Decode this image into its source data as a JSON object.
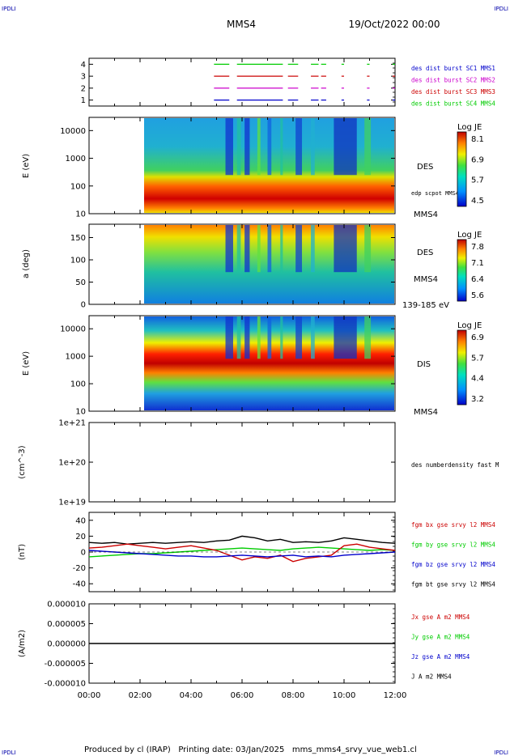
{
  "header": {
    "corner_left_top": "IPDLI",
    "corner_right_top": "IPDLI",
    "corner_left_bottom": "IPDLI",
    "corner_right_bottom": "IPDLI",
    "spacecraft": "MMS4",
    "date": "19/Oct/2022 00:00"
  },
  "footer": {
    "text": "Produced by cl (IRAP)   Printing date: 03/Jan/2025   mms_mms4_srvy_vue_web1.cl"
  },
  "time_axis": {
    "ticks": [
      "00:00",
      "02:00",
      "04:00",
      "06:00",
      "08:00",
      "10:00",
      "12:00"
    ],
    "range_hours": [
      0,
      12
    ]
  },
  "colors": {
    "blue": "#0000cc",
    "magenta": "#cc00cc",
    "red": "#cc0000",
    "green": "#00cc00",
    "black": "#000000"
  },
  "chart_data": [
    {
      "type": "line",
      "panel": "burst",
      "yticks": [
        "1",
        "2",
        "3",
        "4"
      ],
      "ylim": [
        0.5,
        4.5
      ],
      "legend": [
        {
          "label": "des dist burst SC1 MMS1",
          "color": "#0000cc"
        },
        {
          "label": "des dist burst SC2 MMS2",
          "color": "#cc00cc"
        },
        {
          "label": "des dist burst SC3 MMS3",
          "color": "#cc0000"
        },
        {
          "label": "des dist burst SC4 MMS4",
          "color": "#00cc00"
        }
      ],
      "series": [
        {
          "level": 1,
          "color": "#0000cc",
          "intervals": [
            [
              4.9,
              5.5
            ],
            [
              5.8,
              7.6
            ],
            [
              7.8,
              8.2
            ],
            [
              8.7,
              9.0
            ],
            [
              9.1,
              9.3
            ],
            [
              9.9,
              10.0
            ],
            [
              10.9,
              11.0
            ],
            [
              11.9,
              12.0
            ]
          ]
        },
        {
          "level": 2,
          "color": "#cc00cc",
          "intervals": [
            [
              4.9,
              5.5
            ],
            [
              5.8,
              7.6
            ],
            [
              7.8,
              8.2
            ],
            [
              8.7,
              9.0
            ],
            [
              9.1,
              9.3
            ],
            [
              9.9,
              10.0
            ],
            [
              10.9,
              11.0
            ],
            [
              11.9,
              12.0
            ]
          ]
        },
        {
          "level": 3,
          "color": "#cc0000",
          "intervals": [
            [
              4.9,
              5.5
            ],
            [
              5.8,
              7.6
            ],
            [
              7.8,
              8.2
            ],
            [
              8.7,
              9.0
            ],
            [
              9.1,
              9.3
            ],
            [
              9.9,
              10.0
            ],
            [
              10.9,
              11.0
            ],
            [
              11.9,
              12.0
            ]
          ]
        },
        {
          "level": 4,
          "color": "#00cc00",
          "intervals": [
            [
              4.9,
              5.5
            ],
            [
              5.8,
              7.6
            ],
            [
              7.8,
              8.2
            ],
            [
              8.7,
              9.0
            ],
            [
              9.1,
              9.3
            ],
            [
              9.9,
              10.0
            ],
            [
              10.9,
              11.0
            ],
            [
              11.9,
              12.0
            ]
          ]
        }
      ]
    },
    {
      "type": "heatmap",
      "panel": "des_energy",
      "ylabel": "E (eV)",
      "yscale": "log",
      "yticks": [
        "10",
        "100",
        "1000",
        "10000"
      ],
      "ylim": [
        10,
        30000
      ],
      "right_labels": [
        "DES",
        "edp scpot MMS4",
        "MMS4"
      ],
      "colorbar": {
        "title": "Log JE",
        "ticks": [
          "8.1",
          "6.9",
          "5.7",
          "4.5"
        ],
        "range": [
          4.5,
          8.1
        ]
      },
      "data_start_hours": 2.1
    },
    {
      "type": "heatmap",
      "panel": "des_pitch",
      "ylabel": "a (deg)",
      "yticks": [
        "0",
        "50",
        "100",
        "150"
      ],
      "ylim": [
        0,
        180
      ],
      "right_labels": [
        "DES",
        "MMS4",
        "139-185 eV"
      ],
      "colorbar": {
        "title": "Log JE",
        "ticks": [
          "7.8",
          "7.1",
          "6.4",
          "5.6"
        ],
        "range": [
          5.6,
          7.8
        ]
      },
      "data_start_hours": 2.1
    },
    {
      "type": "heatmap",
      "panel": "dis_energy",
      "ylabel": "E (eV)",
      "yscale": "log",
      "yticks": [
        "10",
        "100",
        "1000",
        "10000"
      ],
      "ylim": [
        10,
        30000
      ],
      "right_labels": [
        "DIS",
        "MMS4"
      ],
      "colorbar": {
        "title": "Log JE",
        "ticks": [
          "6.9",
          "5.7",
          "4.4",
          "3.2"
        ],
        "range": [
          3.2,
          6.9
        ]
      },
      "data_start_hours": 2.1
    },
    {
      "type": "line",
      "panel": "density",
      "ylabel": "(cm^-3)",
      "yscale": "log",
      "yticks": [
        "1e+19",
        "1e+20",
        "1e+21"
      ],
      "ylim": [
        1e+19,
        1e+21
      ],
      "legend": [
        {
          "label": "des numberdensity fast M",
          "color": "#000000"
        }
      ],
      "series": []
    },
    {
      "type": "line",
      "panel": "fgm",
      "ylabel": "(nT)",
      "yticks": [
        "-40",
        "-20",
        "0",
        "20",
        "40"
      ],
      "ylim": [
        -50,
        50
      ],
      "legend": [
        {
          "label": "fgm bx gse srvy l2 MMS4",
          "color": "#cc0000"
        },
        {
          "label": "fgm by gse srvy l2 MMS4",
          "color": "#00cc00"
        },
        {
          "label": "fgm bz gse srvy l2 MMS4",
          "color": "#0000cc"
        },
        {
          "label": "fgm bt gse srvy l2 MMS4",
          "color": "#000000"
        }
      ],
      "series": [
        {
          "color": "#000000",
          "x": [
            0,
            0.5,
            1,
            1.5,
            2,
            2.5,
            3,
            3.5,
            4,
            4.5,
            5,
            5.5,
            6,
            6.5,
            7,
            7.5,
            8,
            8.5,
            9,
            9.5,
            10,
            10.5,
            11,
            11.5,
            12
          ],
          "y": [
            12,
            11,
            12,
            10,
            11,
            12,
            11,
            12,
            13,
            12,
            14,
            15,
            20,
            18,
            14,
            16,
            12,
            13,
            12,
            14,
            18,
            16,
            14,
            12,
            11
          ]
        },
        {
          "color": "#00cc00",
          "x": [
            0,
            0.5,
            1,
            1.5,
            2,
            2.5,
            3,
            3.5,
            4,
            4.5,
            5,
            5.5,
            6,
            6.5,
            7,
            7.5,
            8,
            8.5,
            9,
            9.5,
            10,
            10.5,
            11,
            11.5,
            12
          ],
          "y": [
            -6,
            -5,
            -4,
            -3,
            -2,
            -2,
            -1,
            0,
            1,
            2,
            3,
            4,
            5,
            4,
            3,
            2,
            4,
            5,
            6,
            5,
            4,
            3,
            2,
            3,
            2
          ]
        },
        {
          "color": "#cc0000",
          "x": [
            0,
            0.5,
            1,
            1.5,
            2,
            2.5,
            3,
            3.5,
            4,
            4.5,
            5,
            5.5,
            6,
            6.5,
            7,
            7.5,
            8,
            8.5,
            9,
            9.5,
            10,
            10.5,
            11,
            11.5,
            12
          ],
          "y": [
            5,
            6,
            8,
            10,
            8,
            6,
            4,
            6,
            8,
            5,
            2,
            -4,
            -10,
            -6,
            -8,
            -4,
            -12,
            -8,
            -6,
            -4,
            8,
            10,
            6,
            4,
            2
          ]
        },
        {
          "color": "#0000cc",
          "x": [
            0,
            0.5,
            1,
            1.5,
            2,
            2.5,
            3,
            3.5,
            4,
            4.5,
            5,
            5.5,
            6,
            6.5,
            7,
            7.5,
            8,
            8.5,
            9,
            9.5,
            10,
            10.5,
            11,
            11.5,
            12
          ],
          "y": [
            2,
            1,
            0,
            -1,
            -2,
            -3,
            -4,
            -5,
            -5,
            -6,
            -6,
            -5,
            -4,
            -5,
            -6,
            -5,
            -4,
            -6,
            -5,
            -6,
            -4,
            -3,
            -2,
            -1,
            0
          ]
        }
      ]
    },
    {
      "type": "line",
      "panel": "current",
      "ylabel": "(A/m2)",
      "yticks": [
        "-0.000010",
        "-0.000005",
        "0.000000",
        "0.000005",
        "0.000010"
      ],
      "ylim": [
        -1e-05,
        1e-05
      ],
      "legend": [
        {
          "label": "Jx gse A m2 MMS4",
          "color": "#cc0000"
        },
        {
          "label": "Jy gse A m2 MMS4",
          "color": "#00cc00"
        },
        {
          "label": "Jz gse A m2 MMS4",
          "color": "#0000cc"
        },
        {
          "label": "J A m2 MMS4",
          "color": "#000000"
        }
      ],
      "series": [
        {
          "color": "#000000",
          "x": [
            0,
            12
          ],
          "y": [
            0,
            0
          ]
        }
      ]
    }
  ]
}
